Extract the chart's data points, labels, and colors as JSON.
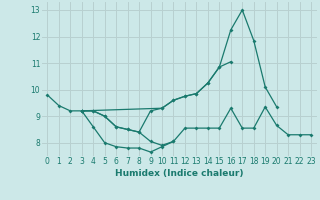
{
  "xlabel": "Humidex (Indice chaleur)",
  "bg_color": "#cce8e8",
  "grid_color": "#b8d0d0",
  "line_color": "#1a7a6e",
  "x_values": [
    0,
    1,
    2,
    3,
    4,
    5,
    6,
    7,
    8,
    9,
    10,
    11,
    12,
    13,
    14,
    15,
    16,
    17,
    18,
    19,
    20,
    21,
    22,
    23
  ],
  "curve1": [
    9.8,
    9.4,
    9.2,
    9.2,
    8.6,
    8.0,
    7.85,
    7.8,
    7.8,
    7.65,
    7.85,
    8.05,
    null,
    null,
    null,
    null,
    null,
    null,
    null,
    null,
    null,
    null,
    null,
    null
  ],
  "curve2": [
    null,
    null,
    null,
    9.2,
    9.2,
    9.0,
    8.6,
    8.5,
    8.4,
    9.2,
    9.3,
    9.6,
    9.75,
    9.85,
    10.25,
    10.85,
    11.05,
    null,
    null,
    null,
    null,
    null,
    null,
    null
  ],
  "curve3": [
    null,
    null,
    null,
    9.2,
    null,
    null,
    null,
    null,
    null,
    null,
    9.3,
    9.6,
    9.75,
    9.85,
    10.25,
    10.85,
    12.25,
    13.0,
    11.85,
    10.1,
    9.35,
    null,
    null,
    null
  ],
  "curve4": [
    null,
    null,
    null,
    9.2,
    9.2,
    9.0,
    8.6,
    8.5,
    8.4,
    8.05,
    7.9,
    8.05,
    8.55,
    8.55,
    8.55,
    8.55,
    9.3,
    8.55,
    8.55,
    9.35,
    8.65,
    8.3,
    8.3,
    8.3
  ],
  "ylim": [
    7.5,
    13.3
  ],
  "xlim": [
    -0.5,
    23.5
  ],
  "yticks": [
    8,
    9,
    10,
    11,
    12,
    13
  ],
  "xticks": [
    0,
    1,
    2,
    3,
    4,
    5,
    6,
    7,
    8,
    9,
    10,
    11,
    12,
    13,
    14,
    15,
    16,
    17,
    18,
    19,
    20,
    21,
    22,
    23
  ]
}
